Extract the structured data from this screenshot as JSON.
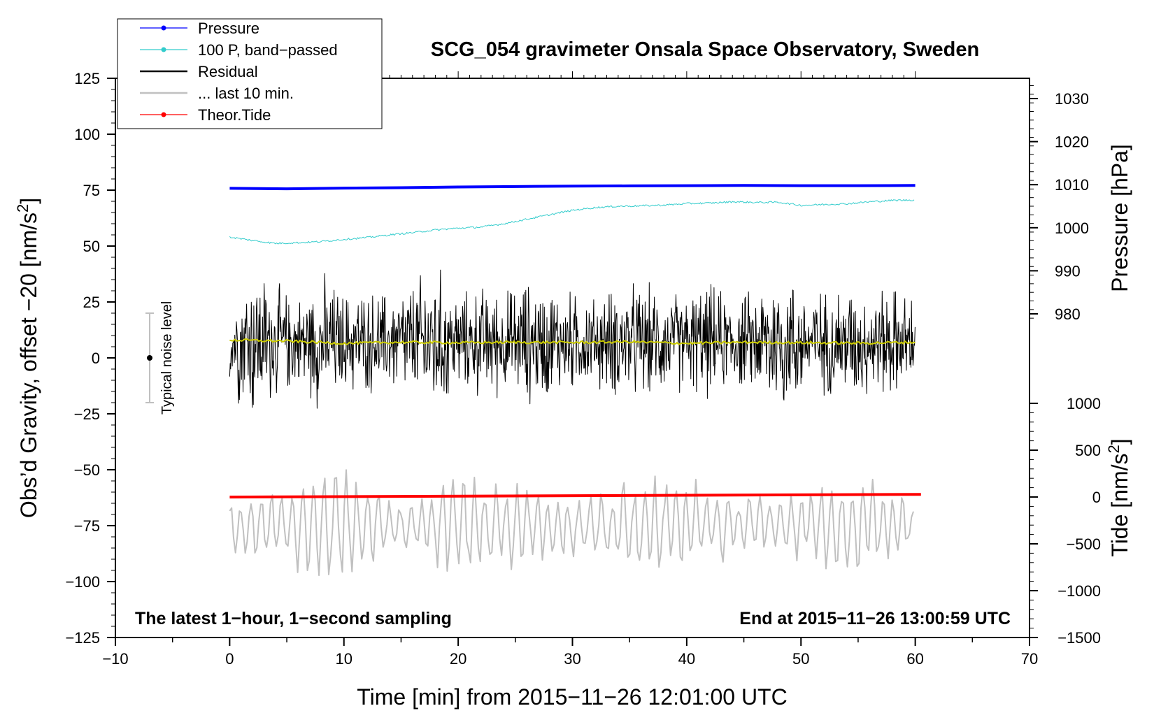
{
  "chart_data": {
    "type": "line",
    "title": "SCG_054 gravimeter Onsala Space Observatory, Sweden",
    "xlabel": "Time [min] from 2015−11−26 12:01:00 UTC",
    "ylabel_left": "Obs’d Gravity, offset −20 [nm/s²]",
    "ylabel_left_main": "Obs’d Gravity, offset −20 [nm/s",
    "ylabel_left_sup": "2",
    "ylabel_left_end": "]",
    "ylabel_right_pressure": "Pressure [hPa]",
    "ylabel_right_tide": "Tide [nm/s²]",
    "ylabel_right_tide_main": "Tide [nm/s",
    "ylabel_right_tide_sup": "2",
    "ylabel_right_tide_end": "]",
    "xlim": [
      -10,
      70
    ],
    "ylim": [
      -125,
      125
    ],
    "pressure_axis_range": [
      975,
      1035
    ],
    "tide_axis_range": [
      -1500,
      1100
    ],
    "x_ticks": [
      -10,
      0,
      10,
      20,
      30,
      40,
      50,
      60,
      70
    ],
    "x_tick_labels": [
      "−10",
      "0",
      "10",
      "20",
      "30",
      "40",
      "50",
      "60",
      "70"
    ],
    "y_ticks": [
      -125,
      -100,
      -75,
      -50,
      -25,
      0,
      25,
      50,
      75,
      100,
      125
    ],
    "y_tick_labels": [
      "−125",
      "−100",
      "−75",
      "−50",
      "−25",
      "0",
      "25",
      "50",
      "75",
      "100",
      "125"
    ],
    "pressure_ticks": [
      980,
      990,
      1000,
      1010,
      1020,
      1030
    ],
    "pressure_tick_labels": [
      "980",
      "990",
      "1000",
      "1010",
      "1020",
      "1030"
    ],
    "tide_ticks": [
      -1500,
      -1000,
      -500,
      0,
      500,
      1000
    ],
    "tide_tick_labels": [
      "−1500",
      "−1000",
      "−500",
      "0",
      "500",
      "1000"
    ],
    "annotation_left": "The latest 1−hour, 1−second sampling",
    "annotation_right": "End at 2015−11−26 13:00:59 UTC",
    "noise_label": "Typical noise level",
    "noise_bar": {
      "x": -7,
      "center": 0,
      "half_range": 20
    },
    "legend": [
      {
        "label": "Pressure",
        "color": "#0000ff",
        "marker": true
      },
      {
        "label": "100 P, band−passed",
        "color": "#33cccc",
        "marker": true
      },
      {
        "label": "Residual",
        "color": "#000000",
        "marker": false
      },
      {
        "label": "... last 10 min.",
        "color": "#c0c0c0",
        "marker": false
      },
      {
        "label": "Theor.Tide",
        "color": "#ff0000",
        "marker": true
      }
    ],
    "series": [
      {
        "name": "Pressure",
        "color": "#0000ff",
        "axis": "left",
        "width": 4,
        "x": [
          0,
          5,
          10,
          15,
          20,
          25,
          30,
          35,
          40,
          45,
          50,
          55,
          60
        ],
        "values": [
          75.8,
          75.6,
          75.9,
          76.1,
          76.4,
          76.6,
          76.8,
          76.9,
          77.0,
          77.1,
          77.0,
          77.0,
          77.1
        ]
      },
      {
        "name": "100 P, band−passed",
        "color": "#33cccc",
        "axis": "left",
        "width": 1,
        "x": [
          0,
          2,
          4,
          6,
          8,
          10,
          12,
          14,
          16,
          18,
          20,
          22,
          24,
          26,
          28,
          30,
          32,
          34,
          36,
          38,
          40,
          42,
          44,
          46,
          48,
          50,
          52,
          54,
          56,
          58,
          60
        ],
        "values": [
          54,
          52.5,
          51.2,
          51.5,
          52,
          53,
          53.8,
          55,
          56,
          57.2,
          58,
          58.5,
          60,
          62,
          64,
          66,
          67.2,
          67.8,
          68,
          68.3,
          69,
          69.2,
          69.8,
          69.5,
          69.6,
          68.2,
          68.6,
          68.9,
          69.8,
          70.4,
          70.6
        ]
      },
      {
        "name": "Residual",
        "color": "#000000",
        "axis": "left",
        "width": 1,
        "x_start": 0,
        "x_end": 60,
        "envelope_x": [
          0,
          2,
          4,
          6,
          8,
          10,
          12,
          14,
          16,
          18,
          20,
          22,
          24,
          26,
          28,
          30,
          32,
          34,
          36,
          38,
          40,
          42,
          44,
          46,
          48,
          50,
          52,
          54,
          56,
          58,
          60
        ],
        "envelope_amplitude": [
          24,
          44,
          30,
          24,
          36,
          27,
          27,
          27,
          33,
          42,
          24,
          30,
          27,
          33,
          30,
          27,
          24,
          30,
          30,
          27,
          27,
          30,
          24,
          27,
          42,
          30,
          27,
          30,
          27,
          30,
          22
        ],
        "mean": 7
      },
      {
        "name": "Residual mean",
        "color": "#cccc00",
        "axis": "left",
        "width": 2,
        "x": [
          0,
          5,
          10,
          15,
          20,
          25,
          30,
          35,
          40,
          45,
          50,
          55,
          60
        ],
        "values": [
          8,
          7.5,
          6.5,
          7,
          6.8,
          7,
          6.9,
          7.2,
          6.5,
          7,
          6.8,
          6.6,
          7
        ]
      },
      {
        "name": "... last 10 min.",
        "color": "#c0c0c0",
        "axis": "left",
        "width": 2,
        "x_start": 0,
        "x_end": 60,
        "envelope_x": [
          0,
          5,
          10,
          15,
          20,
          25,
          30,
          35,
          40,
          45,
          50,
          55,
          60
        ],
        "envelope_amplitude": [
          12,
          22,
          28,
          10,
          25,
          20,
          15,
          22,
          25,
          14,
          16,
          28,
          12
        ],
        "mean": -75
      }
    ],
    "tide_series": {
      "name": "Theor.Tide",
      "color": "#ff0000",
      "axis": "tide",
      "width": 4,
      "x": [
        0,
        60.5
      ],
      "values": [
        -1,
        28
      ]
    }
  }
}
